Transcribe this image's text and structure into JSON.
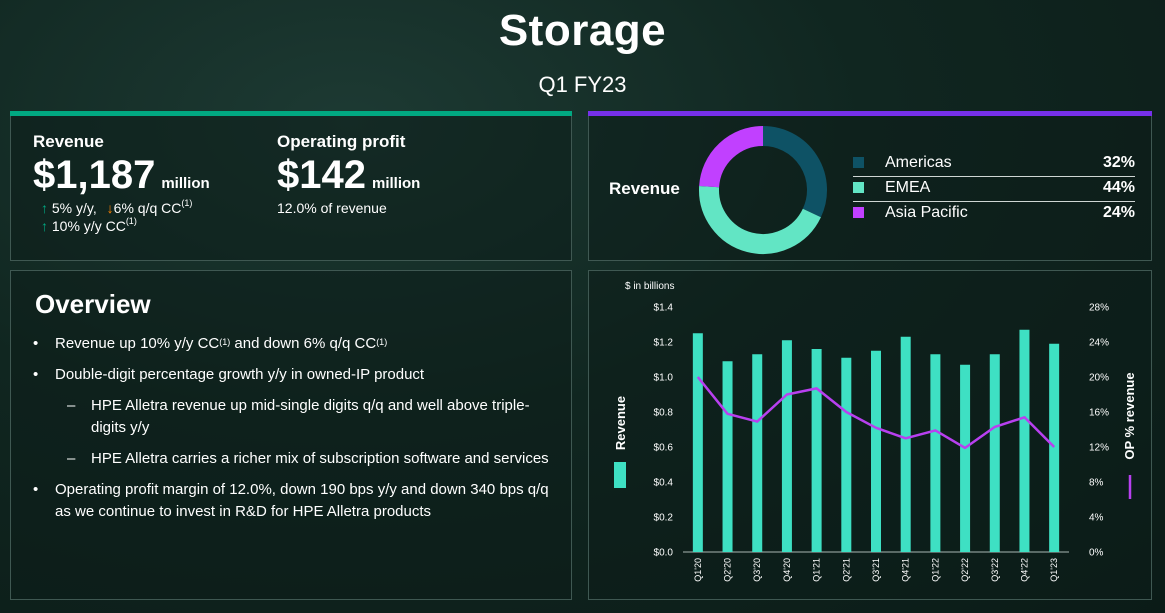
{
  "header": {
    "title": "Storage",
    "subtitle": "Q1 FY23"
  },
  "kpi": {
    "revenue": {
      "label": "Revenue",
      "value": "$1,187",
      "unit": "million",
      "growth1_value": "5% y/y,",
      "growth1_direction": "up",
      "growth2_value": "6% q/q CC",
      "growth2_direction": "down",
      "growth2_note": "(1)",
      "growth3_value": "10% y/y CC",
      "growth3_direction": "up",
      "growth3_note": "(1)"
    },
    "operating_profit": {
      "label": "Operating profit",
      "value": "$142",
      "unit": "million",
      "note": "12.0% of revenue"
    }
  },
  "region_breakdown": {
    "title": "Revenue",
    "items": [
      {
        "name": "Americas",
        "value": "32%",
        "percent": 32,
        "color": "#0e5265"
      },
      {
        "name": "EMEA",
        "value": "44%",
        "percent": 44,
        "color": "#62e5c4"
      },
      {
        "name": "Asia Pacific",
        "value": "24%",
        "percent": 24,
        "color": "#c140ff"
      }
    ]
  },
  "overview": {
    "title": "Overview",
    "b1_text": "Revenue up 10% y/y CC",
    "b1_note": "(1)",
    "b1_text2": " and down 6% q/q CC",
    "b1_note2": "(1)",
    "b2": "Double-digit percentage growth y/y in owned-IP product",
    "b2_sub1": "HPE Alletra revenue up mid-single digits q/q and well above triple-digits y/y",
    "b2_sub2": "HPE Alletra carries a richer mix of subscription software and services",
    "b3": "Operating profit margin of 12.0%, down 190 bps y/y and down 340 bps q/q as we continue to invest in R&D for HPE Alletra products"
  },
  "chart_data": {
    "type": "bar",
    "units_label": "$ in billions",
    "categories": [
      "Q1'20",
      "Q2'20",
      "Q3'20",
      "Q4'20",
      "Q1'21",
      "Q2'21",
      "Q3'21",
      "Q4'21",
      "Q1'22",
      "Q2'22",
      "Q3'22",
      "Q4'22",
      "Q1'23"
    ],
    "series": [
      {
        "name": "Revenue",
        "type": "bar",
        "axis": "left",
        "color": "#3ee0c3",
        "values": [
          1.25,
          1.09,
          1.13,
          1.21,
          1.16,
          1.11,
          1.15,
          1.23,
          1.13,
          1.07,
          1.13,
          1.27,
          1.19
        ]
      },
      {
        "name": "OP % revenue",
        "type": "line",
        "axis": "right",
        "color": "#b840f0",
        "values": [
          20.0,
          15.8,
          14.9,
          18.0,
          18.7,
          16.0,
          14.2,
          13.0,
          13.9,
          11.9,
          14.3,
          15.4,
          12.0
        ]
      }
    ],
    "y_left": {
      "label": "Revenue",
      "min": 0,
      "max": 1.4,
      "ticks": [
        "$0.0",
        "$0.2",
        "$0.4",
        "$0.6",
        "$0.8",
        "$1.0",
        "$1.2",
        "$1.4"
      ]
    },
    "y_right": {
      "label": "OP % revenue",
      "min": 0,
      "max": 28,
      "ticks": [
        "0%",
        "4%",
        "8%",
        "12%",
        "16%",
        "20%",
        "24%",
        "28%"
      ]
    },
    "grid": false
  }
}
